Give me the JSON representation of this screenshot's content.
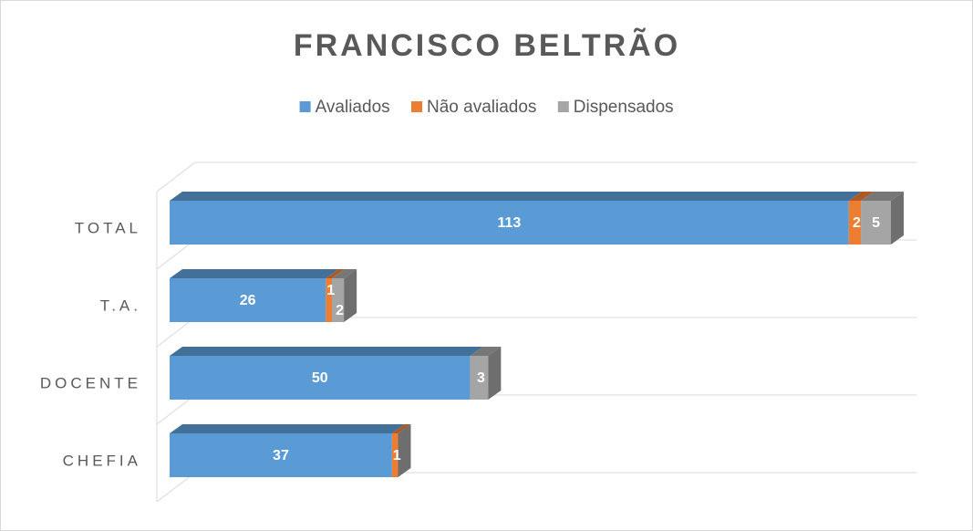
{
  "chart_data": {
    "type": "bar3d_stacked_horizontal",
    "title": "FRANCISCO  BELTRÃO",
    "categories": [
      "TOTAL",
      "T.A.",
      "DOCENTE",
      "CHEFIA"
    ],
    "series": [
      {
        "name": "Avaliados",
        "color": "#5b9bd5",
        "values": [
          113,
          26,
          50,
          37
        ]
      },
      {
        "name": "Não avaliados",
        "color": "#ed7d31",
        "values": [
          2,
          1,
          0,
          1
        ]
      },
      {
        "name": "Dispensados",
        "color": "#a5a5a5",
        "values": [
          5,
          2,
          3,
          0
        ]
      }
    ],
    "legend": "top",
    "grid": true
  }
}
